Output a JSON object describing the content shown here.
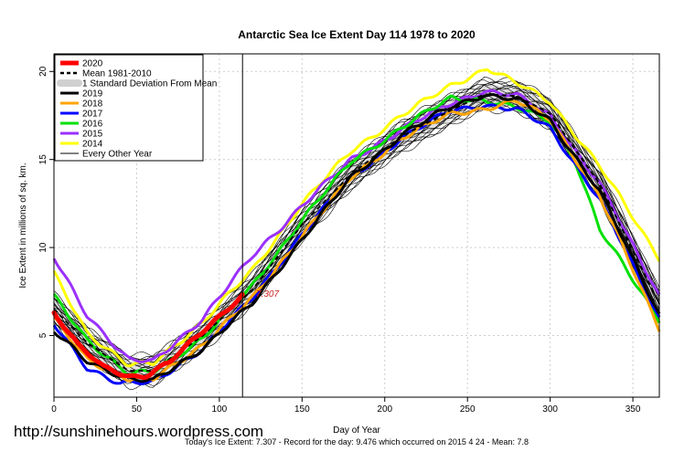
{
  "watermark": "http://sunshinehours.wordpress.com",
  "footer": "Today's Ice Extent: 7.307  - Record for the day: 9.476 which occurred on 2015 4 24  - Mean: 7.8",
  "day_marker_label": "7.307",
  "chart_data": {
    "type": "line",
    "title": "Antarctic Sea Ice Extent Day 114 1978 to 2020",
    "xlabel": "Day of Year",
    "ylabel": "Ice Extent in millions of sq. km.",
    "xlim": [
      0,
      366
    ],
    "ylim": [
      1.5,
      21
    ],
    "x_ticks": [
      0,
      50,
      100,
      150,
      200,
      250,
      300,
      350
    ],
    "y_ticks": [
      5,
      10,
      15,
      20
    ],
    "grid": true,
    "legend_position": "top-left",
    "current_day": 114,
    "series": [
      {
        "name": "Every Other Year",
        "color": "#000000",
        "style": "thin",
        "x": [
          0,
          20,
          45,
          60,
          90,
          120,
          150,
          180,
          210,
          240,
          260,
          280,
          300,
          330,
          366
        ],
        "y": [
          6.5,
          4.6,
          3.0,
          3.0,
          5.0,
          7.6,
          11.3,
          14.2,
          16.3,
          17.8,
          18.7,
          18.6,
          17.6,
          13.6,
          6.8
        ]
      },
      {
        "name": "2014",
        "color": "#ffff00",
        "style": "thick",
        "x": [
          0,
          20,
          45,
          60,
          90,
          120,
          150,
          180,
          210,
          240,
          262,
          280,
          300,
          330,
          366
        ],
        "y": [
          8.5,
          5.2,
          3.3,
          3.4,
          5.8,
          8.7,
          12.5,
          15.5,
          17.5,
          19.2,
          20.2,
          19.3,
          18.3,
          14.6,
          9.4
        ]
      },
      {
        "name": "2015",
        "color": "#9b30ff",
        "style": "thick",
        "x": [
          0,
          20,
          45,
          60,
          90,
          120,
          150,
          180,
          210,
          240,
          260,
          280,
          300,
          330,
          366
        ],
        "y": [
          9.4,
          6.2,
          3.6,
          3.5,
          6.0,
          9.5,
          12.4,
          15.0,
          16.7,
          18.2,
          18.9,
          18.6,
          17.5,
          13.6,
          7.3
        ]
      },
      {
        "name": "2016",
        "color": "#00e000",
        "style": "thick",
        "x": [
          0,
          20,
          45,
          60,
          90,
          120,
          150,
          180,
          210,
          240,
          260,
          280,
          300,
          315,
          330,
          366
        ],
        "y": [
          7.2,
          4.8,
          2.8,
          2.9,
          4.9,
          7.8,
          11.6,
          14.9,
          16.8,
          18.5,
          18.4,
          17.9,
          17.2,
          15.0,
          11.0,
          5.9
        ]
      },
      {
        "name": "2017",
        "color": "#0000ff",
        "style": "thick",
        "x": [
          0,
          20,
          40,
          60,
          90,
          120,
          150,
          180,
          210,
          240,
          260,
          280,
          300,
          330,
          366
        ],
        "y": [
          5.6,
          3.2,
          2.3,
          2.3,
          4.3,
          7.1,
          10.8,
          14.0,
          16.2,
          17.8,
          18.1,
          17.8,
          16.8,
          12.7,
          6.0
        ]
      },
      {
        "name": "2018",
        "color": "#ffa500",
        "style": "thick",
        "x": [
          0,
          20,
          45,
          60,
          90,
          120,
          150,
          180,
          210,
          240,
          260,
          280,
          300,
          330,
          366
        ],
        "y": [
          5.9,
          3.7,
          2.5,
          2.5,
          4.5,
          7.1,
          10.7,
          14.0,
          16.2,
          17.6,
          17.9,
          18.3,
          17.3,
          12.9,
          5.4
        ]
      },
      {
        "name": "2019",
        "color": "#000000",
        "style": "thick",
        "x": [
          0,
          20,
          45,
          60,
          90,
          120,
          150,
          180,
          210,
          240,
          260,
          280,
          300,
          330,
          366
        ],
        "y": [
          5.2,
          3.6,
          2.5,
          2.4,
          4.3,
          6.8,
          10.5,
          14.0,
          16.4,
          18.0,
          18.7,
          18.4,
          17.2,
          13.2,
          6.2
        ]
      },
      {
        "name": "1 Standard Deviation From Mean",
        "color": "#d0d0d0",
        "style": "band",
        "x": [
          0,
          20,
          45,
          60,
          90,
          120,
          150,
          180,
          210,
          240,
          260,
          280,
          300,
          330,
          366
        ],
        "y": [
          6.5,
          4.6,
          3.0,
          3.0,
          5.0,
          7.6,
          11.3,
          14.2,
          16.3,
          17.8,
          18.7,
          18.6,
          17.6,
          13.6,
          6.8
        ]
      },
      {
        "name": "Mean 1981-2010",
        "color": "#000000",
        "style": "dashed",
        "x": [
          0,
          20,
          45,
          60,
          90,
          120,
          150,
          180,
          210,
          240,
          260,
          280,
          300,
          330,
          366
        ],
        "y": [
          6.5,
          4.6,
          3.0,
          3.0,
          5.0,
          7.6,
          11.3,
          14.2,
          16.3,
          17.8,
          18.7,
          18.6,
          17.6,
          13.6,
          6.8
        ]
      },
      {
        "name": "2020",
        "color": "#ff0000",
        "style": "thick",
        "x": [
          0,
          15,
          30,
          45,
          55,
          70,
          85,
          100,
          114
        ],
        "y": [
          6.3,
          4.4,
          3.2,
          2.7,
          2.7,
          3.5,
          4.8,
          6.1,
          7.3
        ]
      }
    ]
  }
}
